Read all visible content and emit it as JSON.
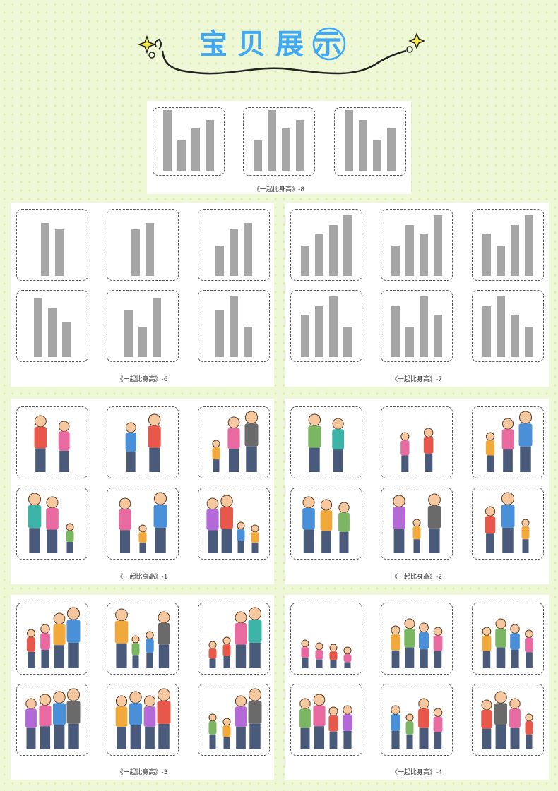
{
  "title": "宝贝展示",
  "panels": [
    {
      "caption": "《一起比身高》-8"
    },
    {
      "caption": "《一起比身高》-6"
    },
    {
      "caption": "《一起比身高》-7"
    },
    {
      "caption": "《一起比身高》-1"
    },
    {
      "caption": "《一起比身高》-2"
    },
    {
      "caption": "《一起比身高》-3"
    },
    {
      "caption": "《一起比身高》-4"
    }
  ]
}
